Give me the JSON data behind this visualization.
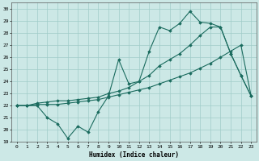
{
  "xlabel": "Humidex (Indice chaleur)",
  "bg_color": "#cce8e6",
  "grid_color": "#a0ccc9",
  "line_color": "#1a6b5e",
  "xlim": [
    -0.5,
    23.5
  ],
  "ylim": [
    19,
    30.5
  ],
  "xticks": [
    0,
    1,
    2,
    3,
    4,
    5,
    6,
    7,
    8,
    9,
    10,
    11,
    12,
    13,
    14,
    15,
    16,
    17,
    18,
    19,
    20,
    21,
    22,
    23
  ],
  "yticks": [
    19,
    20,
    21,
    22,
    23,
    24,
    25,
    26,
    27,
    28,
    29,
    30
  ],
  "line1_y": [
    22.0,
    22.0,
    22.0,
    21.0,
    20.5,
    19.3,
    20.3,
    19.8,
    21.5,
    22.8,
    25.8,
    23.8,
    24.0,
    26.5,
    28.5,
    28.2,
    28.8,
    29.8,
    28.9,
    28.8,
    28.5,
    26.3,
    24.5,
    22.8
  ],
  "line2_y": [
    22.0,
    22.0,
    22.1,
    22.1,
    22.1,
    22.2,
    22.3,
    22.4,
    22.5,
    22.7,
    22.9,
    23.1,
    23.3,
    23.5,
    23.8,
    24.1,
    24.4,
    24.7,
    25.1,
    25.5,
    26.0,
    26.5,
    27.0,
    22.8
  ],
  "line3_y": [
    22.0,
    22.0,
    22.2,
    22.3,
    22.4,
    22.4,
    22.5,
    22.6,
    22.7,
    23.0,
    23.2,
    23.5,
    24.0,
    24.5,
    25.3,
    25.8,
    26.3,
    27.0,
    27.8,
    28.5,
    28.5,
    26.3,
    24.5,
    22.8
  ]
}
